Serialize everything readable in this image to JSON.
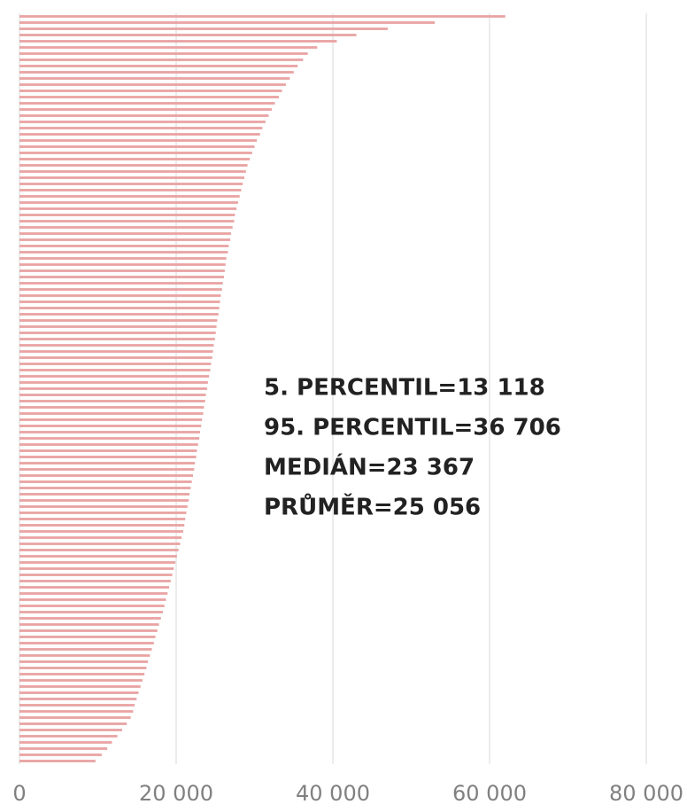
{
  "chart_data": {
    "type": "barh",
    "values": [
      62000,
      53000,
      47000,
      43000,
      40500,
      38000,
      36800,
      36200,
      35500,
      35000,
      34500,
      34000,
      33500,
      33100,
      32600,
      32200,
      31800,
      31400,
      31000,
      30700,
      30300,
      30000,
      29700,
      29400,
      29100,
      28900,
      28700,
      28500,
      28300,
      28100,
      27900,
      27700,
      27500,
      27400,
      27200,
      27000,
      26900,
      26700,
      26600,
      26400,
      26300,
      26200,
      26100,
      25950,
      25850,
      25700,
      25600,
      25500,
      25400,
      25250,
      25150,
      25050,
      24950,
      24800,
      24700,
      24600,
      24450,
      24350,
      24200,
      24050,
      23950,
      23800,
      23700,
      23550,
      23450,
      23300,
      23200,
      23050,
      22950,
      22800,
      22650,
      22550,
      22400,
      22300,
      22150,
      22000,
      21850,
      21700,
      21600,
      21450,
      21300,
      21150,
      21050,
      20900,
      20700,
      20500,
      20300,
      20100,
      19900,
      19700,
      19500,
      19300,
      19100,
      18900,
      18700,
      18500,
      18300,
      18050,
      17800,
      17600,
      17350,
      17150,
      16900,
      16650,
      16400,
      16200,
      15950,
      15700,
      15450,
      15200,
      14950,
      14700,
      14500,
      14200,
      13700,
      13100,
      12500,
      11800,
      11200,
      10500,
      9700
    ],
    "color": "#e9a3a3",
    "xlim": [
      0,
      80000
    ],
    "xticks": [
      0,
      {
        "value": 20000,
        "label": "20 000"
      },
      {
        "value": 40000,
        "label": "40 000"
      },
      {
        "value": 60000,
        "label": "60 000"
      },
      {
        "value": 80000,
        "label": "80 000"
      }
    ],
    "grid": true,
    "annotations": [
      "5. PERCENTIL=13 118",
      "95. PERCENTIL=36 706",
      "MEDIÁN=23 367",
      "PRŮMĚR=25 056"
    ]
  }
}
